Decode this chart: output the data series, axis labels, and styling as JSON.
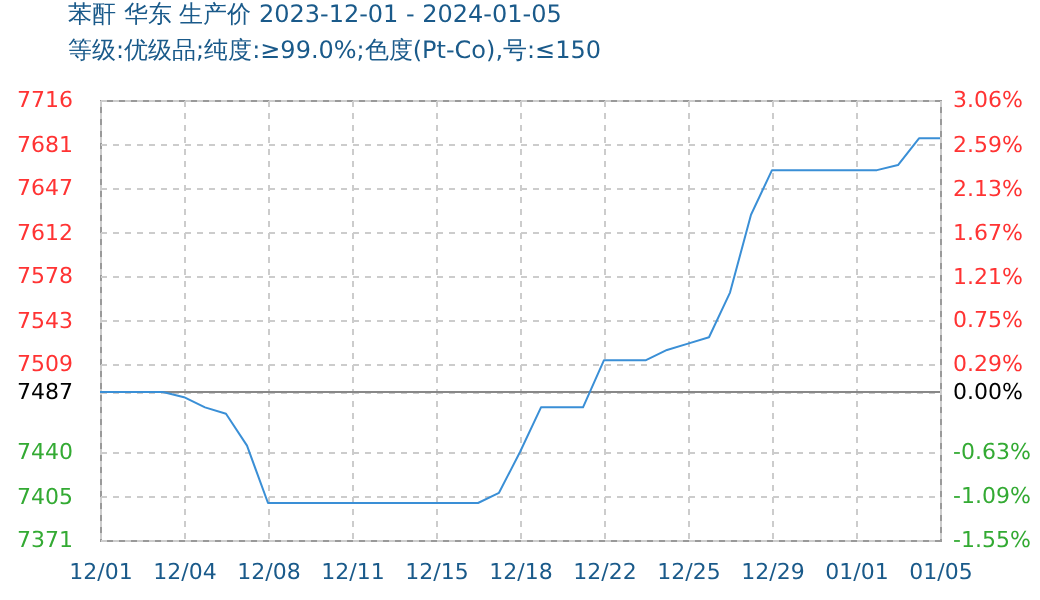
{
  "chart_data": {
    "type": "line",
    "title": "苯酐 华东 生产价 2023-12-01 - 2024-01-05",
    "subtitle": "等级:优级品;纯度:≥99.0%;色度(Pt-Co),号:≤150",
    "categories": [
      "12/01",
      null,
      null,
      null,
      "12/04",
      null,
      null,
      null,
      "12/08",
      null,
      null,
      null,
      "12/11",
      null,
      null,
      null,
      "12/15",
      null,
      null,
      null,
      "12/18",
      null,
      null,
      null,
      "12/22",
      null,
      null,
      null,
      "12/25",
      null,
      null,
      null,
      "12/29",
      null,
      null,
      null,
      "01/01",
      null,
      null,
      null,
      "01/05"
    ],
    "series": [
      {
        "color": "#3a8fd6",
        "values": [
          7487,
          7487,
          7487,
          7487,
          7483,
          7475,
          7470,
          7445,
          7400,
          7400,
          7400,
          7400,
          7400,
          7400,
          7400,
          7400,
          7400,
          7400,
          7400,
          7408,
          7440,
          7475,
          7475,
          7475,
          7512,
          7512,
          7512,
          7520,
          7525,
          7530,
          7565,
          7626,
          7661,
          7661,
          7661,
          7661,
          7661,
          7661,
          7665,
          7686,
          7686
        ]
      }
    ],
    "ylim": [
      7371,
      7716
    ],
    "yticks": [
      7371,
      7405,
      7440,
      7487,
      7509,
      7543,
      7578,
      7612,
      7647,
      7681,
      7716
    ],
    "y2lim": [
      -1.55,
      3.06
    ],
    "y2ticks": [
      {
        "value": -1.55,
        "label": "-1.55%"
      },
      {
        "value": -1.09,
        "label": "-1.09%"
      },
      {
        "value": -0.63,
        "label": "-0.63%"
      },
      {
        "value": 0,
        "label": "0.00%"
      },
      {
        "value": 0.29,
        "label": "0.29%"
      },
      {
        "value": 0.75,
        "label": "0.75%"
      },
      {
        "value": 1.21,
        "label": "1.21%"
      },
      {
        "value": 1.67,
        "label": "1.67%"
      },
      {
        "value": 2.13,
        "label": "2.13%"
      },
      {
        "value": 2.59,
        "label": "2.59%"
      },
      {
        "value": 3.06,
        "label": "3.06%"
      }
    ],
    "ref_lines": [
      {
        "axis": "y2",
        "value": 0,
        "color": "#888888"
      }
    ],
    "grid": true,
    "line_style": "solid",
    "marker": "none"
  }
}
